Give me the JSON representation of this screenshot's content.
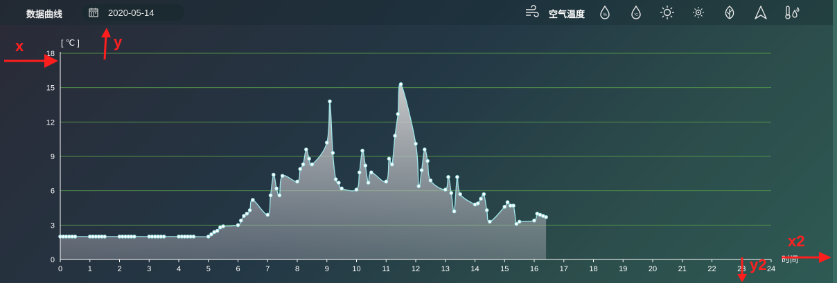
{
  "header": {
    "title": "数据曲线",
    "date": "2020-05-14",
    "metric_label": "空气温度",
    "icons": [
      "wind-icon",
      "water-drop-icon",
      "soil-temp-icon",
      "sun-icon",
      "sun-small-icon",
      "leaf-icon",
      "navigation-icon",
      "thermo-drop-icon"
    ]
  },
  "annotations": {
    "x": "x",
    "y": "y",
    "x2": "x2",
    "y2": "y2",
    "color": "#ff1e1e"
  },
  "chart_data": {
    "type": "area",
    "y_unit_label": "[ ℃ ]",
    "x_axis_name": "时间",
    "xlim": [
      0,
      24
    ],
    "ylim": [
      0,
      18
    ],
    "x_ticks": [
      "0",
      "1",
      "2",
      "3",
      "4",
      "5",
      "6",
      "7",
      "8",
      "9",
      "10",
      "11",
      "12",
      "13",
      "14",
      "15",
      "16",
      "17",
      "18",
      "19",
      "20",
      "21",
      "22",
      "23",
      "24"
    ],
    "y_ticks": [
      "0",
      "3",
      "6",
      "9",
      "12",
      "15",
      "18"
    ],
    "grid": true,
    "line_color": "#9fe6ea",
    "grid_color": "#4f8f4a",
    "series": [
      {
        "x": [
          0,
          0.1,
          0.2,
          0.3,
          0.4,
          0.5,
          1.0,
          1.1,
          1.2,
          1.3,
          1.4,
          1.5,
          2.0,
          2.1,
          2.2,
          2.3,
          2.4,
          2.5,
          3.0,
          3.1,
          3.2,
          3.3,
          3.4,
          3.5,
          4.0,
          4.1,
          4.2,
          4.3,
          4.4,
          4.5,
          5.0,
          5.1,
          5.2,
          5.3,
          5.4,
          5.5,
          6.0,
          6.1,
          6.2,
          6.3,
          6.4,
          6.5,
          7.0,
          7.1,
          7.2,
          7.3,
          7.4,
          7.5,
          8.0,
          8.1,
          8.2,
          8.3,
          8.4,
          8.5,
          9.0,
          9.1,
          9.2,
          9.3,
          9.4,
          9.5,
          10.0,
          10.1,
          10.2,
          10.3,
          10.4,
          10.5,
          11.0,
          11.1,
          11.2,
          11.3,
          11.4,
          11.5,
          12.0,
          12.1,
          12.2,
          12.3,
          12.4,
          12.5,
          13.0,
          13.1,
          13.2,
          13.3,
          13.4,
          13.5,
          14.0,
          14.1,
          14.2,
          14.3,
          14.4,
          14.5,
          15.0,
          15.1,
          15.2,
          15.3,
          15.4,
          15.5,
          16.0,
          16.1,
          16.2,
          16.3,
          16.4
        ],
        "values": [
          2.0,
          2.0,
          2.0,
          2.0,
          2.0,
          2.0,
          2.0,
          2.0,
          2.0,
          2.0,
          2.0,
          2.0,
          2.0,
          2.0,
          2.0,
          2.0,
          2.0,
          2.0,
          2.0,
          2.0,
          2.0,
          2.0,
          2.0,
          2.0,
          2.0,
          2.0,
          2.0,
          2.0,
          2.0,
          2.0,
          2.0,
          2.2,
          2.4,
          2.5,
          2.8,
          2.9,
          3.0,
          3.4,
          3.8,
          4.0,
          4.3,
          5.2,
          3.9,
          5.6,
          7.4,
          6.2,
          5.6,
          7.3,
          6.8,
          7.9,
          8.3,
          9.6,
          8.8,
          8.3,
          10.2,
          13.8,
          9.3,
          7.0,
          6.7,
          6.2,
          6.1,
          7.6,
          9.5,
          8.2,
          6.7,
          7.6,
          6.8,
          8.8,
          8.3,
          10.8,
          12.7,
          15.3,
          10.1,
          6.4,
          7.8,
          9.6,
          8.6,
          6.9,
          6.1,
          7.2,
          5.8,
          4.2,
          7.2,
          5.7,
          4.8,
          4.9,
          5.3,
          5.7,
          4.3,
          3.3,
          4.6,
          5.0,
          4.7,
          4.7,
          3.1,
          3.3,
          3.4,
          4.0,
          3.9,
          3.8,
          3.7
        ]
      }
    ]
  }
}
